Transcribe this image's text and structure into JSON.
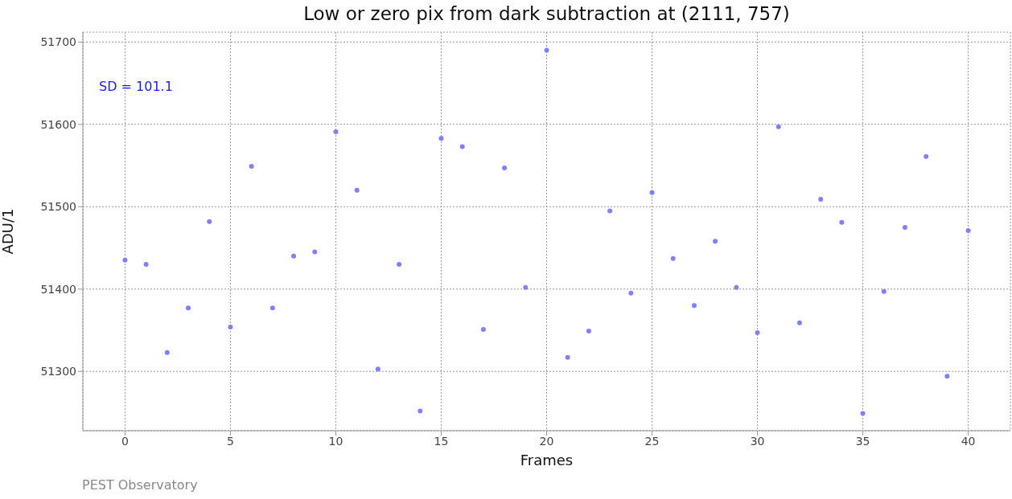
{
  "chart_data": {
    "type": "scatter",
    "title": "Low or zero pix from dark subtraction at (2111, 757)",
    "xlabel": "Frames",
    "ylabel": "ADU/1",
    "x": [
      0,
      1,
      2,
      3,
      4,
      5,
      6,
      7,
      8,
      9,
      10,
      11,
      12,
      13,
      14,
      15,
      16,
      17,
      18,
      19,
      20,
      21,
      22,
      23,
      24,
      25,
      26,
      27,
      28,
      29,
      30,
      31,
      32,
      33,
      34,
      35,
      36,
      37,
      38,
      39,
      40
    ],
    "series": [
      {
        "color": "#8080ff",
        "values": [
          51435,
          51430,
          51323,
          51377,
          51482,
          51354,
          51549,
          51377,
          51440,
          51445,
          51591,
          51520,
          51303,
          51430,
          51252,
          51583,
          51573,
          51351,
          51547,
          51402,
          51690,
          51317,
          51349,
          51495,
          51395,
          51517,
          51437,
          51380,
          51458,
          51402,
          51347,
          51597,
          51359,
          51509,
          51481,
          51249,
          51397,
          51475,
          51561,
          51294,
          51471
        ]
      }
    ],
    "xlim": [
      -2,
      42
    ],
    "xticks": [
      0,
      5,
      10,
      15,
      20,
      25,
      30,
      35,
      40
    ],
    "ylim": [
      51228,
      51712
    ],
    "yticks": [
      51300,
      51400,
      51500,
      51600,
      51700
    ],
    "grid": true,
    "marker": "circle",
    "annotations": [
      "SD = 101.1",
      "PEST Observatory"
    ]
  }
}
